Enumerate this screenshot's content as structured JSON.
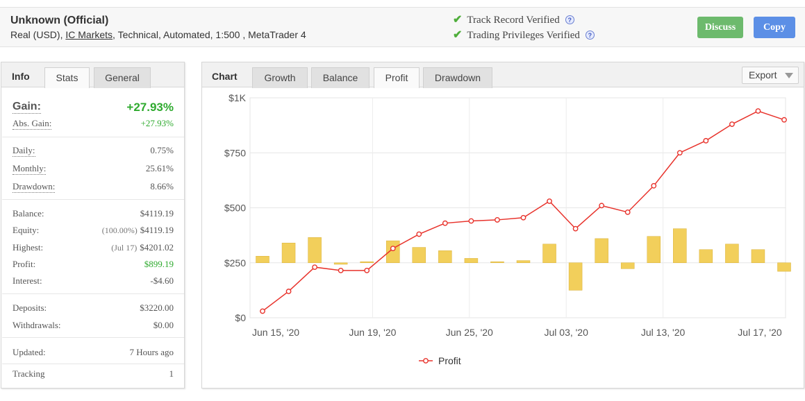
{
  "account": {
    "name": "Unknown (Official)",
    "desc_pre": "Real (USD), ",
    "broker": "IC Markets",
    "desc_post": ", Technical, Automated, 1:500 , MetaTrader 4"
  },
  "verification": {
    "track": "Track Record Verified",
    "privileges": "Trading Privileges Verified",
    "help": "?",
    "check_icon": "check-icon",
    "help_icon": "help-icon"
  },
  "buttons": {
    "discuss": "Discuss",
    "copy": "Copy"
  },
  "left_tabs": {
    "title": "Info",
    "stats": "Stats",
    "general": "General"
  },
  "stats": {
    "gain_label": "Gain:",
    "gain_value": "+27.93%",
    "abs_gain_label": "Abs. Gain:",
    "abs_gain_value": "+27.93%",
    "daily_label": "Daily:",
    "daily_value": "0.75%",
    "monthly_label": "Monthly:",
    "monthly_value": "25.61%",
    "drawdown_label": "Drawdown:",
    "drawdown_value": "8.66%",
    "balance_label": "Balance:",
    "balance_value": "$4119.19",
    "equity_label": "Equity:",
    "equity_pre": "(100.00%)",
    "equity_value": "$4119.19",
    "highest_label": "Highest:",
    "highest_pre": "(Jul 17)",
    "highest_value": "$4201.02",
    "profit_label": "Profit:",
    "profit_value": "$899.19",
    "interest_label": "Interest:",
    "interest_value": "-$4.60",
    "deposits_label": "Deposits:",
    "deposits_value": "$3220.00",
    "withdrawals_label": "Withdrawals:",
    "withdrawals_value": "$0.00",
    "updated_label": "Updated:",
    "updated_value": "7 Hours ago",
    "tracking_label": "Tracking",
    "tracking_value": "1"
  },
  "chart_tabs": {
    "title": "Chart",
    "growth": "Growth",
    "balance": "Balance",
    "profit": "Profit",
    "drawdown": "Drawdown"
  },
  "export": {
    "label": "Export"
  },
  "colors": {
    "line": "#e8322b",
    "bar": "#f2cf5b",
    "bar_border": "#d9b13a",
    "green": "#2eaa2e",
    "discuss": "#6dba6d",
    "copy": "#5c8fe6"
  },
  "chart_data": {
    "type": "bar+line",
    "ylim": [
      0,
      1000
    ],
    "yticks": [
      0,
      250,
      500,
      750,
      1000
    ],
    "ytick_labels": [
      "$0",
      "$250",
      "$500",
      "$750",
      "$1K"
    ],
    "xtick_labels": [
      "Jun 15, '20",
      "Jun 19, '20",
      "Jun 25, '20",
      "Jul 03, '20",
      "Jul 13, '20",
      "Jul 17, '20"
    ],
    "legend": "Profit",
    "grid": true,
    "series": [
      {
        "name": "Profit",
        "kind": "line",
        "values": [
          30,
          120,
          230,
          215,
          215,
          315,
          380,
          430,
          440,
          445,
          455,
          530,
          405,
          510,
          480,
          600,
          750,
          805,
          880,
          940,
          900
        ]
      },
      {
        "kind": "bar",
        "baseline": 250,
        "values": [
          30,
          90,
          115,
          -7,
          5,
          100,
          70,
          55,
          20,
          5,
          10,
          85,
          -125,
          110,
          -27,
          120,
          155,
          60,
          85,
          60,
          -39
        ]
      }
    ]
  }
}
